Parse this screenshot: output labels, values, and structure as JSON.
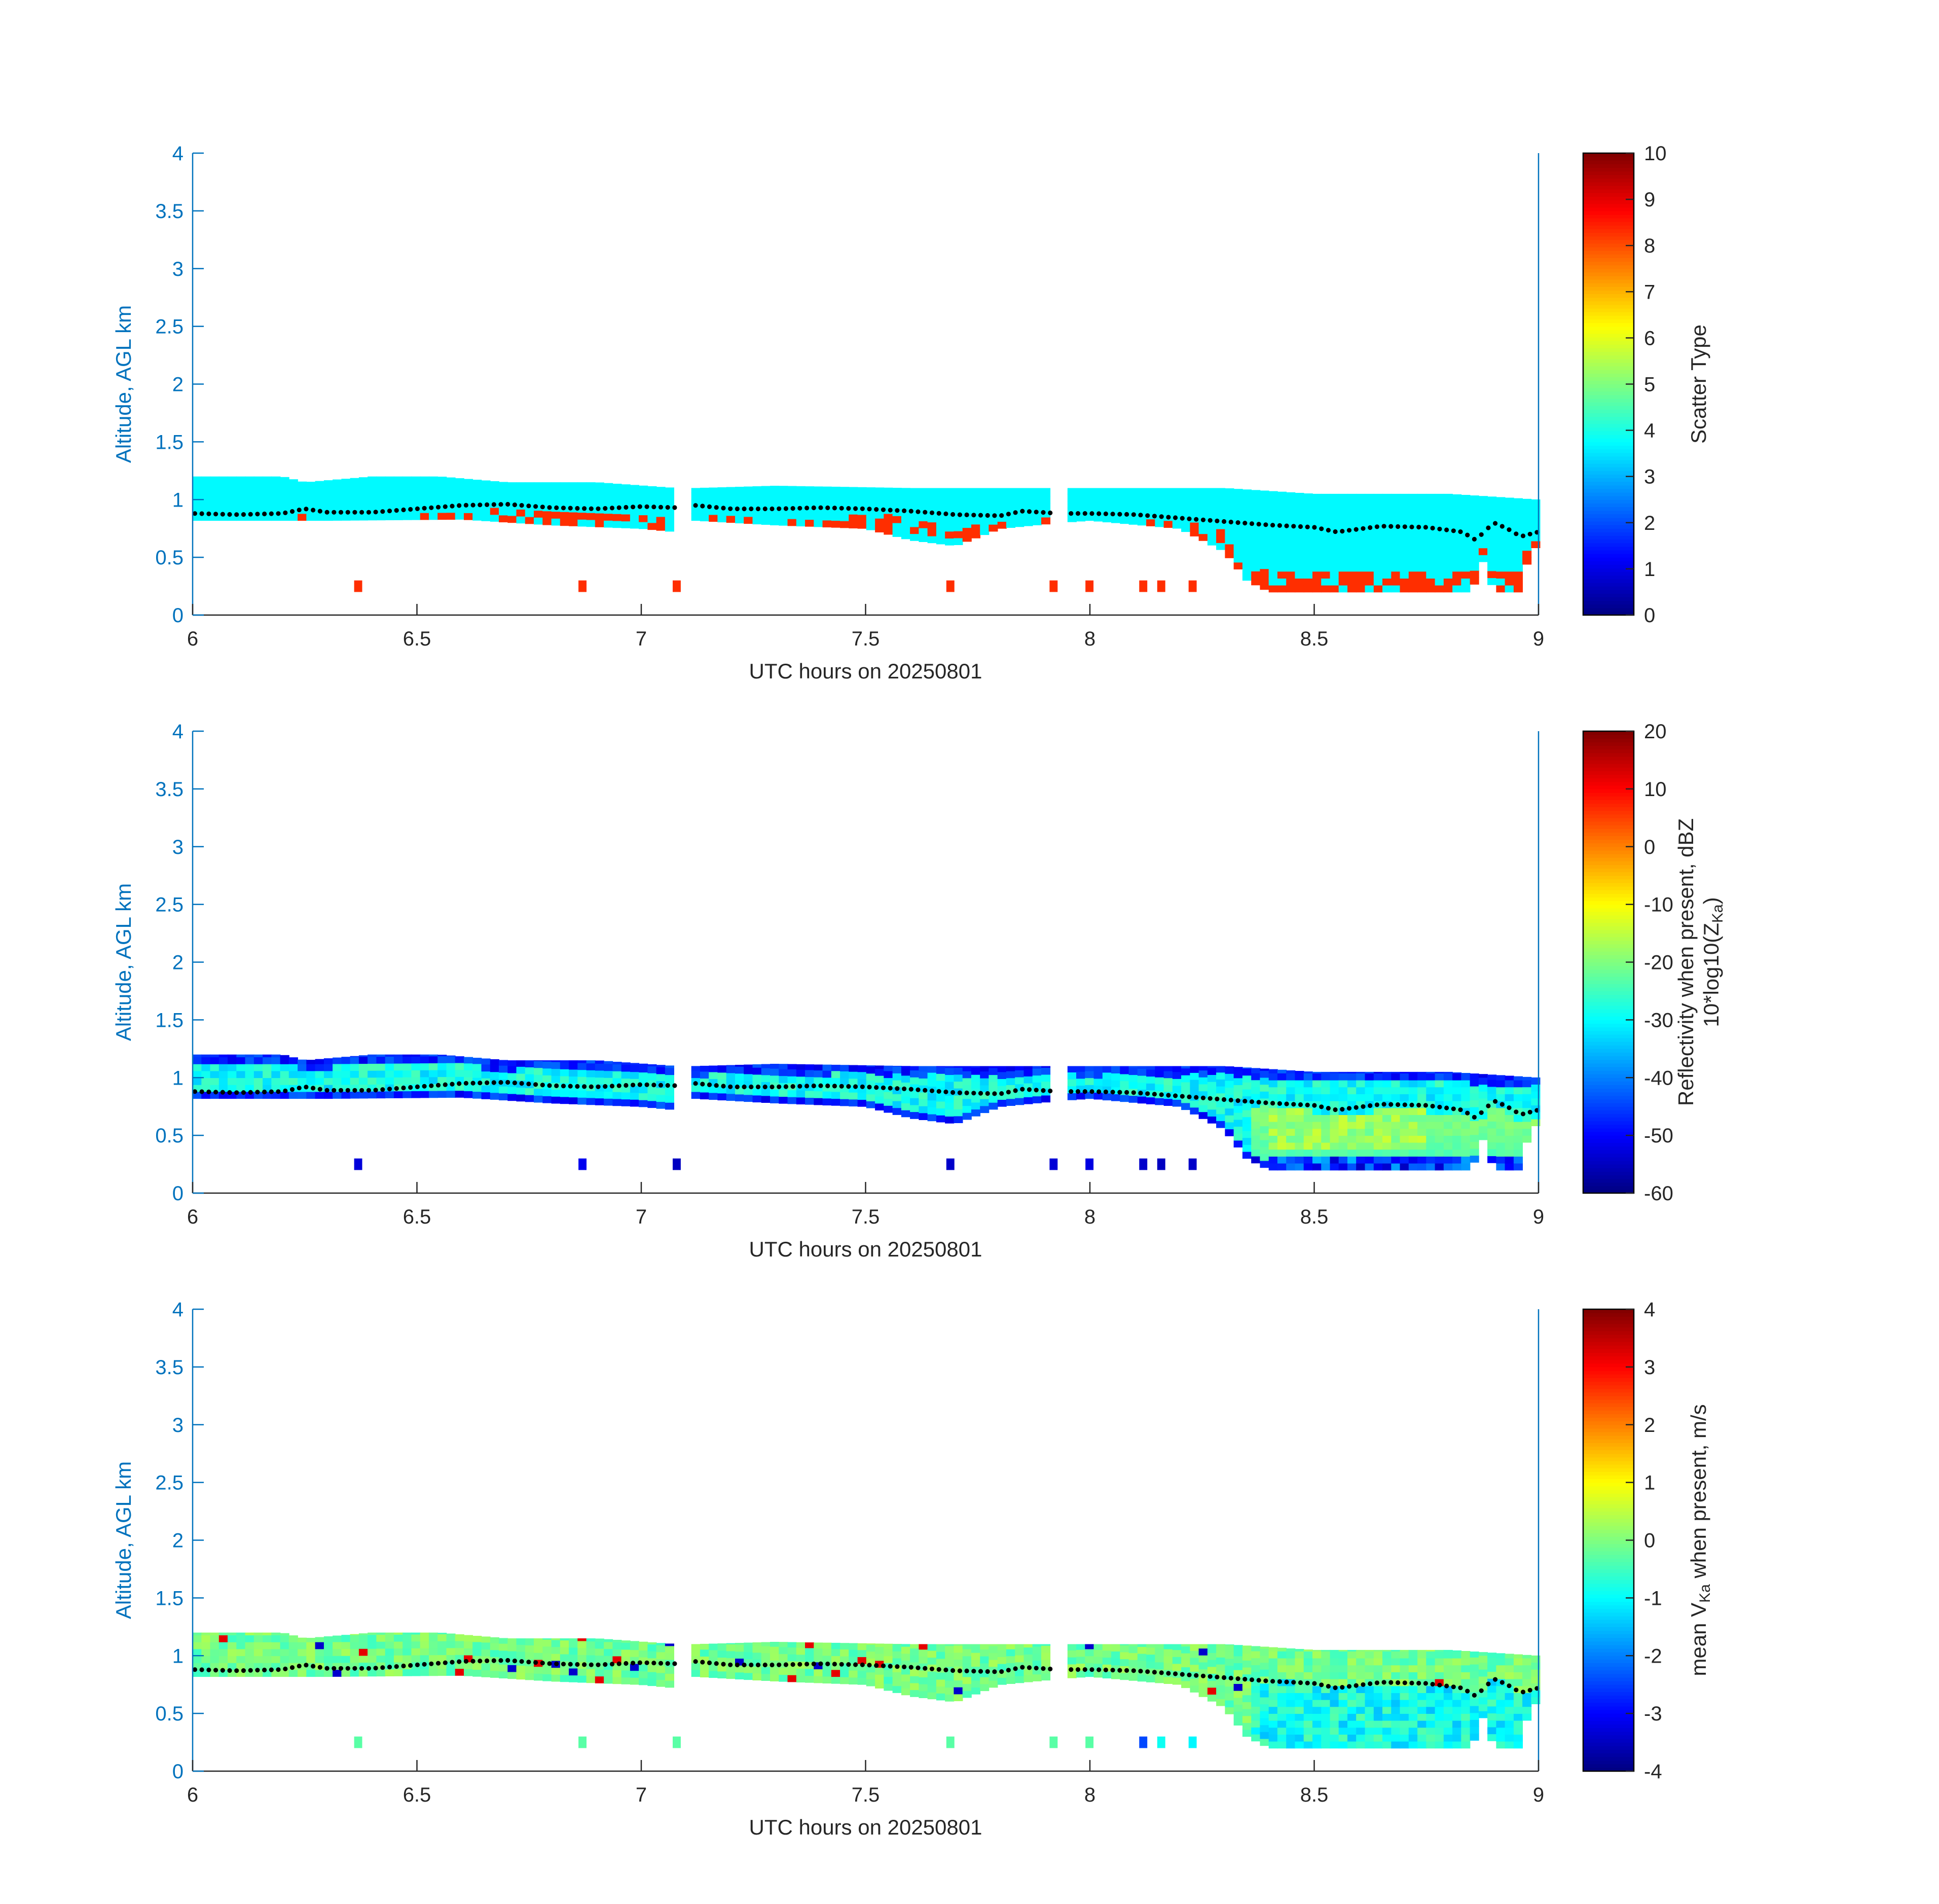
{
  "figure": {
    "colors": {
      "axis": "#0072BD",
      "text": "#262626",
      "background": "#ffffff",
      "cbar_border": "#000000",
      "dots": "#000000"
    },
    "colormap": "jet"
  },
  "chart_data": [
    {
      "type": "heatmap",
      "panel": "scatter-type",
      "xlabel": "UTC hours on 20250801",
      "ylabel": "Altitude, AGL km",
      "xlim": [
        6,
        9
      ],
      "ylim": [
        0,
        4
      ],
      "xticks": [
        6,
        6.5,
        7,
        7.5,
        8,
        8.5,
        9
      ],
      "xtick_labels": [
        "6",
        "6.5",
        "7",
        "7.5",
        "8",
        "8.5",
        "9"
      ],
      "yticks": [
        0,
        0.5,
        1,
        1.5,
        2,
        2.5,
        3,
        3.5,
        4
      ],
      "ytick_labels": [
        "0",
        "0.5",
        "1",
        "1.5",
        "2",
        "2.5",
        "3",
        "3.5",
        "4"
      ],
      "colorbar": {
        "label": [
          "Scatter Type"
        ],
        "clim": [
          0,
          10
        ],
        "ticks": [
          0,
          1,
          2,
          3,
          4,
          5,
          6,
          7,
          8,
          9,
          10
        ],
        "tick_labels": [
          "0",
          "1",
          "2",
          "3",
          "4",
          "5",
          "6",
          "7",
          "8",
          "9",
          "10"
        ]
      },
      "field": "type",
      "main_value": 3.7,
      "secondary_value": 8.3
    },
    {
      "type": "heatmap",
      "panel": "reflectivity",
      "xlabel": "UTC hours on 20250801",
      "ylabel": "Altitude, AGL km",
      "xlim": [
        6,
        9
      ],
      "ylim": [
        0,
        4
      ],
      "xticks": [
        6,
        6.5,
        7,
        7.5,
        8,
        8.5,
        9
      ],
      "xtick_labels": [
        "6",
        "6.5",
        "7",
        "7.5",
        "8",
        "8.5",
        "9"
      ],
      "yticks": [
        0,
        0.5,
        1,
        1.5,
        2,
        2.5,
        3,
        3.5,
        4
      ],
      "ytick_labels": [
        "0",
        "0.5",
        "1",
        "1.5",
        "2",
        "2.5",
        "3",
        "3.5",
        "4"
      ],
      "colorbar": {
        "label": [
          "Reflectivity when present, dBZ",
          "10*log10(Z",
          "Ka",
          ")"
        ],
        "clim": [
          -60,
          20
        ],
        "ticks": [
          -60,
          -50,
          -40,
          -30,
          -20,
          -10,
          0,
          10,
          20
        ],
        "tick_labels": [
          "-60",
          "-50",
          "-40",
          "-30",
          "-20",
          "-10",
          "0",
          "10",
          "20"
        ]
      },
      "field": "dbz"
    },
    {
      "type": "heatmap",
      "panel": "velocity",
      "xlabel": "UTC hours on 20250801",
      "ylabel": "Altitude, AGL km",
      "xlim": [
        6,
        9
      ],
      "ylim": [
        0,
        4
      ],
      "xticks": [
        6,
        6.5,
        7,
        7.5,
        8,
        8.5,
        9
      ],
      "xtick_labels": [
        "6",
        "6.5",
        "7",
        "7.5",
        "8",
        "8.5",
        "9"
      ],
      "yticks": [
        0,
        0.5,
        1,
        1.5,
        2,
        2.5,
        3,
        3.5,
        4
      ],
      "ytick_labels": [
        "0",
        "0.5",
        "1",
        "1.5",
        "2",
        "2.5",
        "3",
        "3.5",
        "4"
      ],
      "colorbar": {
        "label": [
          "mean V",
          "Ka",
          " when present, m/s"
        ],
        "clim": [
          -4,
          4
        ],
        "ticks": [
          -4,
          -3,
          -2,
          -1,
          0,
          1,
          2,
          3,
          4
        ],
        "tick_labels": [
          "-4",
          "-3",
          "-2",
          "-1",
          "0",
          "1",
          "2",
          "3",
          "4"
        ]
      },
      "field": "vel"
    }
  ],
  "cloud_base_km": [
    [
      6.0,
      0.88
    ],
    [
      6.1,
      0.87
    ],
    [
      6.2,
      0.88
    ],
    [
      6.25,
      0.92
    ],
    [
      6.3,
      0.89
    ],
    [
      6.4,
      0.89
    ],
    [
      6.5,
      0.92
    ],
    [
      6.6,
      0.95
    ],
    [
      6.7,
      0.96
    ],
    [
      6.8,
      0.93
    ],
    [
      6.9,
      0.92
    ],
    [
      7.0,
      0.94
    ],
    [
      7.08,
      0.93
    ],
    [
      7.12,
      0.95
    ],
    [
      7.2,
      0.92
    ],
    [
      7.3,
      0.92
    ],
    [
      7.4,
      0.93
    ],
    [
      7.5,
      0.92
    ],
    [
      7.6,
      0.9
    ],
    [
      7.7,
      0.87
    ],
    [
      7.8,
      0.86
    ],
    [
      7.85,
      0.9
    ],
    [
      7.93,
      0.88
    ],
    [
      8.0,
      0.88
    ],
    [
      8.1,
      0.87
    ],
    [
      8.2,
      0.84
    ],
    [
      8.3,
      0.81
    ],
    [
      8.4,
      0.78
    ],
    [
      8.5,
      0.76
    ],
    [
      8.55,
      0.72
    ],
    [
      8.65,
      0.77
    ],
    [
      8.75,
      0.76
    ],
    [
      8.83,
      0.72
    ],
    [
      8.86,
      0.65
    ],
    [
      8.9,
      0.8
    ],
    [
      8.93,
      0.75
    ],
    [
      8.96,
      0.68
    ],
    [
      9.0,
      0.72
    ]
  ],
  "cloud_top_km": [
    [
      6.0,
      1.2
    ],
    [
      6.2,
      1.2
    ],
    [
      6.25,
      1.15
    ],
    [
      6.4,
      1.2
    ],
    [
      6.55,
      1.2
    ],
    [
      6.7,
      1.15
    ],
    [
      6.9,
      1.15
    ],
    [
      7.08,
      1.1
    ],
    [
      7.12,
      1.1
    ],
    [
      7.3,
      1.12
    ],
    [
      7.6,
      1.1
    ],
    [
      7.9,
      1.1
    ],
    [
      7.93,
      1.1
    ],
    [
      8.0,
      1.1
    ],
    [
      8.3,
      1.1
    ],
    [
      8.5,
      1.05
    ],
    [
      8.8,
      1.05
    ],
    [
      9.0,
      1.0
    ]
  ],
  "lower_extent_km": [
    [
      6.0,
      0.82
    ],
    [
      6.3,
      0.82
    ],
    [
      6.6,
      0.83
    ],
    [
      6.8,
      0.78
    ],
    [
      7.0,
      0.75
    ],
    [
      7.08,
      0.72
    ],
    [
      7.12,
      0.82
    ],
    [
      7.3,
      0.78
    ],
    [
      7.5,
      0.75
    ],
    [
      7.6,
      0.65
    ],
    [
      7.7,
      0.6
    ],
    [
      7.8,
      0.75
    ],
    [
      7.93,
      0.8
    ],
    [
      8.0,
      0.82
    ],
    [
      8.2,
      0.75
    ],
    [
      8.3,
      0.55
    ],
    [
      8.35,
      0.3
    ],
    [
      8.4,
      0.2
    ],
    [
      8.85,
      0.2
    ],
    [
      8.88,
      0.5
    ],
    [
      8.9,
      0.2
    ],
    [
      8.96,
      0.2
    ],
    [
      8.98,
      0.55
    ],
    [
      9.0,
      0.6
    ]
  ],
  "gaps_hours": [
    [
      7.08,
      7.11
    ],
    [
      7.92,
      7.95
    ]
  ],
  "isolated_near_ground": {
    "y_range_km": [
      0.2,
      0.3
    ],
    "x_hours": [
      6.36,
      6.86,
      7.07,
      7.68,
      7.91,
      7.99,
      8.11,
      8.15,
      8.22
    ]
  }
}
